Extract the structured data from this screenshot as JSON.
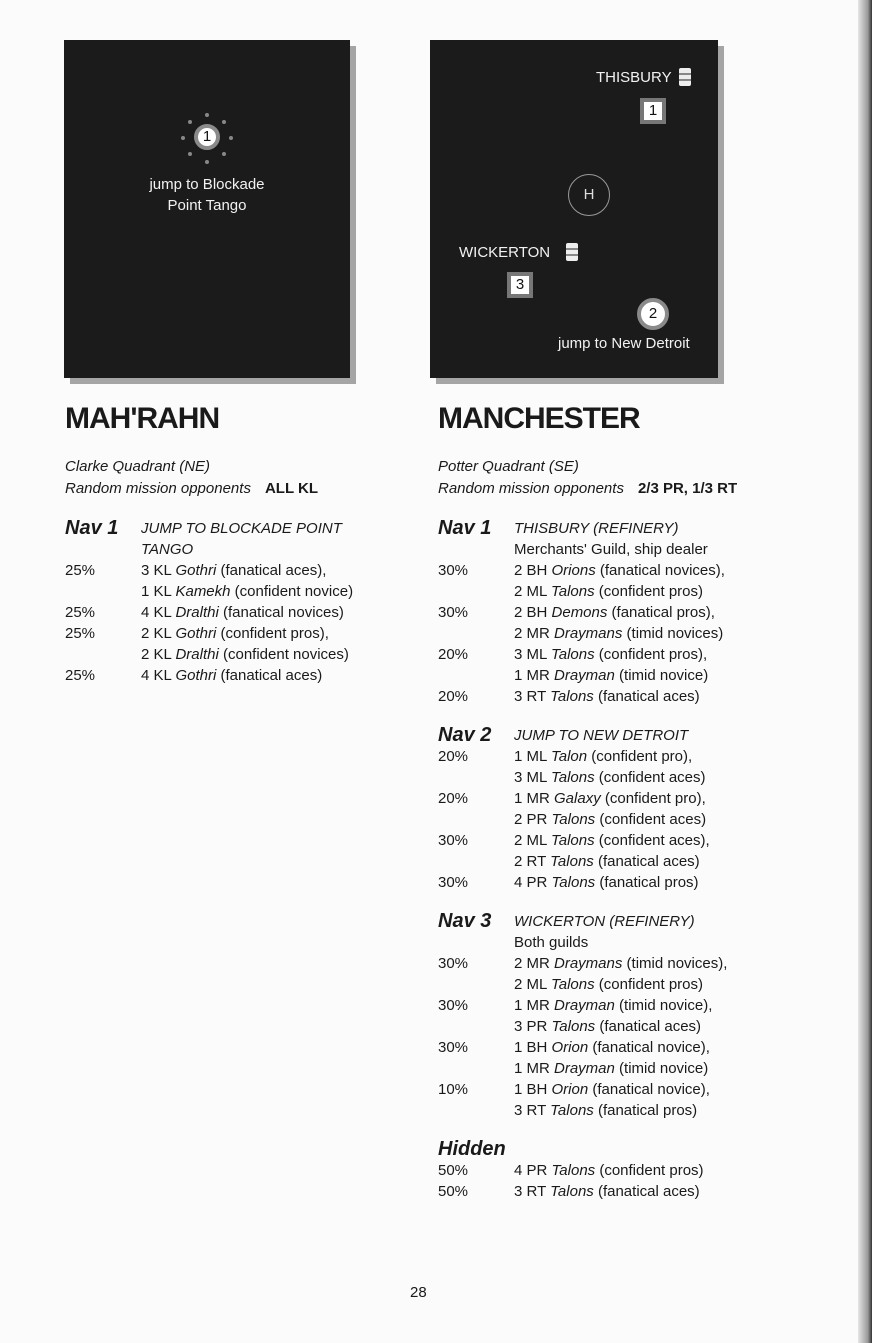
{
  "maps": {
    "mahrahn": {
      "nav1_number": "1",
      "nav1_label_line1": "jump to Blockade",
      "nav1_label_line2": "Point Tango"
    },
    "manchester": {
      "thisbury": "THISBURY",
      "thisbury_number": "1",
      "hidden_marker": "H",
      "wickerton": "WICKERTON",
      "wickerton_number": "3",
      "jump_number": "2",
      "jump_label": "jump to New Detroit",
      "refinery_icon": "barrel-icon"
    }
  },
  "columns": [
    {
      "title": "MAH'RAHN",
      "quadrant": "Clarke Quadrant (NE)",
      "opponents_label": "Random mission opponents",
      "opponents_value": "ALL KL",
      "sections": [
        {
          "nav": "Nav 1",
          "header": [
            "JUMP TO BLOCKADE POINT",
            "TANGO"
          ],
          "entries": [
            {
              "pct": "25%",
              "lines": [
                [
                  [
                    "3 KL ",
                    0
                  ],
                  [
                    "Gothri",
                    1
                  ],
                  [
                    " (fanatical aces),",
                    0
                  ]
                ],
                [
                  [
                    "1 KL ",
                    0
                  ],
                  [
                    "Kamekh",
                    1
                  ],
                  [
                    " (confident novice)",
                    0
                  ]
                ]
              ]
            },
            {
              "pct": "25%",
              "lines": [
                [
                  [
                    "4 KL ",
                    0
                  ],
                  [
                    "Dralthi",
                    1
                  ],
                  [
                    " (fanatical novices)",
                    0
                  ]
                ]
              ]
            },
            {
              "pct": "25%",
              "lines": [
                [
                  [
                    "2 KL ",
                    0
                  ],
                  [
                    "Gothri",
                    1
                  ],
                  [
                    " (confident pros),",
                    0
                  ]
                ],
                [
                  [
                    "2 KL ",
                    0
                  ],
                  [
                    "Dralthi",
                    1
                  ],
                  [
                    " (confident novices)",
                    0
                  ]
                ]
              ]
            },
            {
              "pct": "25%",
              "lines": [
                [
                  [
                    "4 KL ",
                    0
                  ],
                  [
                    "Gothri",
                    1
                  ],
                  [
                    " (fanatical aces)",
                    0
                  ]
                ]
              ]
            }
          ]
        }
      ]
    },
    {
      "title": "MANCHESTER",
      "quadrant": "Potter Quadrant (SE)",
      "opponents_label": "Random mission opponents",
      "opponents_value": "2/3 PR, 1/3 RT",
      "sections": [
        {
          "nav": "Nav 1",
          "header": [
            "THISBURY (REFINERY)"
          ],
          "note": "Merchants' Guild, ship dealer",
          "entries": [
            {
              "pct": "30%",
              "lines": [
                [
                  [
                    "2 BH ",
                    0
                  ],
                  [
                    "Orions",
                    1
                  ],
                  [
                    " (fanatical novices),",
                    0
                  ]
                ],
                [
                  [
                    "2 ML ",
                    0
                  ],
                  [
                    "Talons",
                    1
                  ],
                  [
                    " (confident pros)",
                    0
                  ]
                ]
              ]
            },
            {
              "pct": "30%",
              "lines": [
                [
                  [
                    "2 BH ",
                    0
                  ],
                  [
                    "Demons",
                    1
                  ],
                  [
                    " (fanatical pros),",
                    0
                  ]
                ],
                [
                  [
                    "2 MR ",
                    0
                  ],
                  [
                    "Draymans",
                    1
                  ],
                  [
                    " (timid novices)",
                    0
                  ]
                ]
              ]
            },
            {
              "pct": "20%",
              "lines": [
                [
                  [
                    "3 ML ",
                    0
                  ],
                  [
                    "Talons",
                    1
                  ],
                  [
                    " (confident pros),",
                    0
                  ]
                ],
                [
                  [
                    "1 MR ",
                    0
                  ],
                  [
                    "Drayman",
                    1
                  ],
                  [
                    " (timid novice)",
                    0
                  ]
                ]
              ]
            },
            {
              "pct": "20%",
              "lines": [
                [
                  [
                    "3 RT ",
                    0
                  ],
                  [
                    "Talons",
                    1
                  ],
                  [
                    " (fanatical aces)",
                    0
                  ]
                ]
              ]
            }
          ]
        },
        {
          "nav": "Nav 2",
          "header": [
            "JUMP TO NEW DETROIT"
          ],
          "entries": [
            {
              "pct": "20%",
              "lines": [
                [
                  [
                    "1 ML ",
                    0
                  ],
                  [
                    "Talon",
                    1
                  ],
                  [
                    " (confident pro),",
                    0
                  ]
                ],
                [
                  [
                    "3 ML ",
                    0
                  ],
                  [
                    "Talons",
                    1
                  ],
                  [
                    " (confident aces)",
                    0
                  ]
                ]
              ]
            },
            {
              "pct": "20%",
              "lines": [
                [
                  [
                    "1 MR ",
                    0
                  ],
                  [
                    "Galaxy",
                    1
                  ],
                  [
                    " (confident pro),",
                    0
                  ]
                ],
                [
                  [
                    "2 PR ",
                    0
                  ],
                  [
                    "Talons",
                    1
                  ],
                  [
                    " (confident aces)",
                    0
                  ]
                ]
              ]
            },
            {
              "pct": "30%",
              "lines": [
                [
                  [
                    "2 ML ",
                    0
                  ],
                  [
                    "Talons",
                    1
                  ],
                  [
                    " (confident aces),",
                    0
                  ]
                ],
                [
                  [
                    "2 RT ",
                    0
                  ],
                  [
                    "Talons",
                    1
                  ],
                  [
                    " (fanatical aces)",
                    0
                  ]
                ]
              ]
            },
            {
              "pct": "30%",
              "lines": [
                [
                  [
                    "4 PR ",
                    0
                  ],
                  [
                    "Talons",
                    1
                  ],
                  [
                    " (fanatical pros)",
                    0
                  ]
                ]
              ]
            }
          ]
        },
        {
          "nav": "Nav 3",
          "header": [
            "WICKERTON (REFINERY)"
          ],
          "note": "Both guilds",
          "entries": [
            {
              "pct": "30%",
              "lines": [
                [
                  [
                    "2 MR ",
                    0
                  ],
                  [
                    "Draymans",
                    1
                  ],
                  [
                    " (timid novices),",
                    0
                  ]
                ],
                [
                  [
                    "2 ML ",
                    0
                  ],
                  [
                    "Talons",
                    1
                  ],
                  [
                    " (confident pros)",
                    0
                  ]
                ]
              ]
            },
            {
              "pct": "30%",
              "lines": [
                [
                  [
                    "1 MR ",
                    0
                  ],
                  [
                    "Drayman",
                    1
                  ],
                  [
                    " (timid novice),",
                    0
                  ]
                ],
                [
                  [
                    "3 PR ",
                    0
                  ],
                  [
                    "Talons",
                    1
                  ],
                  [
                    " (fanatical aces)",
                    0
                  ]
                ]
              ]
            },
            {
              "pct": "30%",
              "lines": [
                [
                  [
                    "1 BH ",
                    0
                  ],
                  [
                    "Orion",
                    1
                  ],
                  [
                    " (fanatical novice),",
                    0
                  ]
                ],
                [
                  [
                    "1 MR ",
                    0
                  ],
                  [
                    "Drayman",
                    1
                  ],
                  [
                    " (timid novice)",
                    0
                  ]
                ]
              ]
            },
            {
              "pct": "10%",
              "lines": [
                [
                  [
                    "1 BH ",
                    0
                  ],
                  [
                    "Orion",
                    1
                  ],
                  [
                    " (fanatical novice),",
                    0
                  ]
                ],
                [
                  [
                    "3 RT ",
                    0
                  ],
                  [
                    "Talons",
                    1
                  ],
                  [
                    " (fanatical pros)",
                    0
                  ]
                ]
              ]
            }
          ]
        },
        {
          "nav": "Hidden",
          "header": [],
          "entries": [
            {
              "pct": "50%",
              "lines": [
                [
                  [
                    "4 PR ",
                    0
                  ],
                  [
                    "Talons",
                    1
                  ],
                  [
                    " (confident pros)",
                    0
                  ]
                ]
              ]
            },
            {
              "pct": "50%",
              "lines": [
                [
                  [
                    "3 RT ",
                    0
                  ],
                  [
                    "Talons",
                    1
                  ],
                  [
                    " (fanatical aces)",
                    0
                  ]
                ]
              ]
            }
          ]
        }
      ]
    }
  ],
  "page_number": "28"
}
